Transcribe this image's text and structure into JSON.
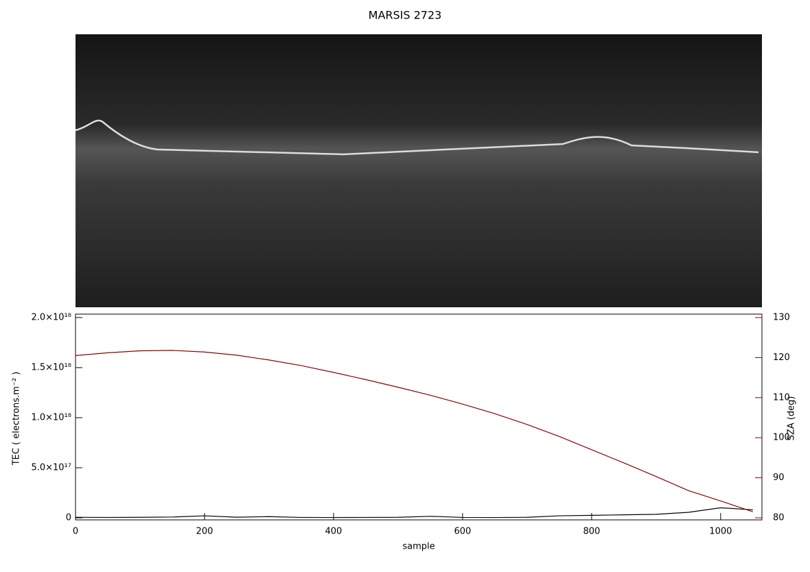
{
  "chart_data": {
    "type": "line",
    "title": "MARSIS 2723",
    "x_label": "sample",
    "y_label": "TEC ( electrons.m⁻² )",
    "y2_label": "SZA (deg)",
    "x": [
      0,
      50,
      100,
      150,
      200,
      250,
      300,
      350,
      400,
      450,
      500,
      550,
      600,
      650,
      700,
      750,
      800,
      850,
      900,
      950,
      1000,
      1050
    ],
    "series": [
      {
        "name": "TEC",
        "color": "#000000",
        "axis": "y",
        "values": [
          5000000000000000.0,
          4000000000000000.0,
          5000000000000000.0,
          8000000000000000.0,
          2e+16,
          6000000000000000.0,
          1.2e+16,
          4000000000000000.0,
          3000000000000000.0,
          4000000000000000.0,
          5000000000000000.0,
          1.5e+16,
          4000000000000000.0,
          3000000000000000.0,
          5000000000000000.0,
          2e+16,
          2.5e+16,
          3e+16,
          3.5e+16,
          5.5e+16,
          1e+17,
          8e+16
        ]
      },
      {
        "name": "SZA",
        "color": "#8b0000",
        "axis": "y2",
        "values": [
          120.5,
          121.2,
          121.7,
          121.8,
          121.4,
          120.6,
          119.4,
          118.0,
          116.3,
          114.5,
          112.6,
          110.6,
          108.4,
          106.0,
          103.3,
          100.3,
          97.0,
          93.7,
          90.3,
          86.8,
          84.2,
          81.5
        ]
      }
    ],
    "xlim": [
      0,
      1064
    ],
    "xticks": [
      0,
      200,
      400,
      600,
      800,
      1000
    ],
    "ylim": [
      0,
      2e+18
    ],
    "yticks": [
      0,
      {
        "value": 5e+17,
        "label": "5.0×10¹⁷"
      },
      {
        "value": 1e+18,
        "label": "1.0×10¹⁸"
      },
      {
        "value": 1.5e+18,
        "label": "1.5×10¹⁸"
      },
      {
        "value": 2e+18,
        "label": "2.0×10¹⁸"
      }
    ],
    "y2lim": [
      80,
      130
    ],
    "y2ticks": [
      80,
      90,
      100,
      110,
      120,
      130
    ],
    "y2_color": "#8b0000"
  }
}
